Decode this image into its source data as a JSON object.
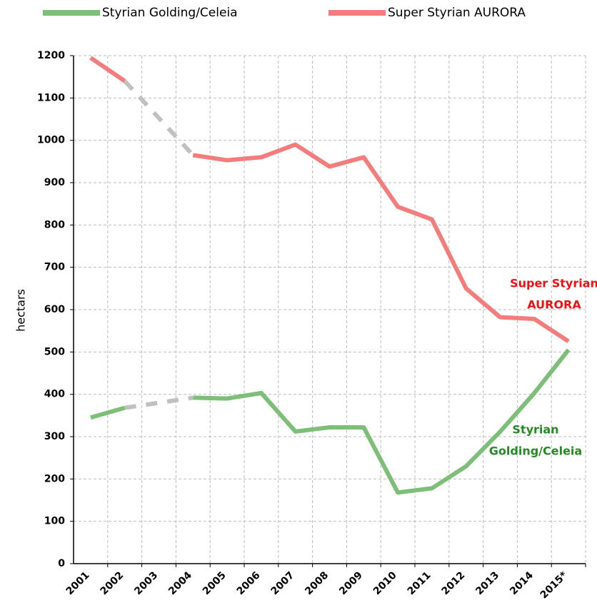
{
  "chart_data": {
    "type": "line",
    "y_label": "hectars",
    "categories": [
      "2001",
      "2002",
      "2003",
      "2004",
      "2005",
      "2006",
      "2007",
      "2008",
      "2009",
      "2010",
      "2011",
      "2012",
      "2013",
      "2014",
      "2015*"
    ],
    "series": [
      {
        "name": "Styrian Golding/Celeia",
        "color": "#7dbf78",
        "values": [
          345,
          368,
          null,
          392,
          390,
          403,
          312,
          322,
          322,
          168,
          178,
          230,
          312,
          403,
          505
        ]
      },
      {
        "name": "Super Styrian AURORA",
        "color": "#f47c7c",
        "values": [
          1195,
          1140,
          null,
          965,
          953,
          960,
          990,
          938,
          960,
          843,
          813,
          650,
          582,
          578,
          525
        ]
      }
    ],
    "gap_color": "#c0c0c0",
    "ylim": [
      0,
      1200
    ],
    "yticks": [
      0,
      100,
      200,
      300,
      400,
      500,
      600,
      700,
      800,
      900,
      1000,
      1100,
      1200
    ],
    "grid": true,
    "annotations": [
      {
        "lines": [
          "Super Styrian",
          "AURORA"
        ],
        "color": "#ee1111"
      },
      {
        "lines": [
          "Styrian",
          "Golding/Celeia"
        ],
        "color": "#228b22"
      }
    ]
  }
}
